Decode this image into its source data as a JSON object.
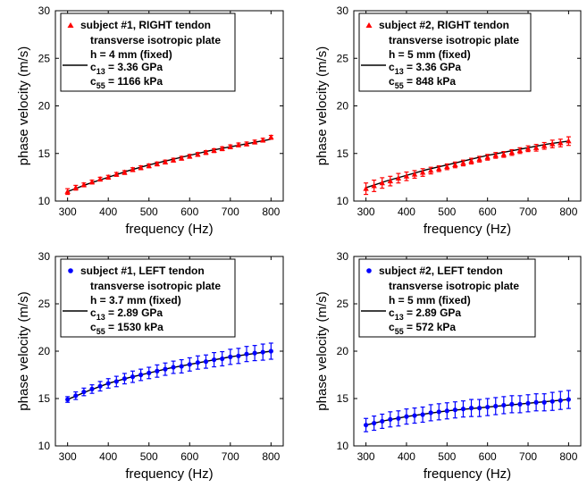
{
  "chart_data": [
    {
      "type": "scatter",
      "panel": "top-left",
      "xlabel": "frequency (Hz)",
      "ylabel": "phase velocity (m/s)",
      "xlim": [
        270,
        830
      ],
      "ylim": [
        10,
        30
      ],
      "xticks": [
        300,
        400,
        500,
        600,
        700,
        800
      ],
      "yticks": [
        10,
        15,
        20,
        25,
        30
      ],
      "grid": false,
      "legend_position": "top-left",
      "marker": "triangle",
      "color": "#ff0000",
      "series": [
        {
          "name": "subject #1, RIGHT tendon",
          "kind": "measured",
          "x": [
            300,
            320,
            340,
            360,
            380,
            400,
            420,
            440,
            460,
            480,
            500,
            520,
            540,
            560,
            580,
            600,
            620,
            640,
            660,
            680,
            700,
            720,
            740,
            760,
            780,
            800
          ],
          "y": [
            11.0,
            11.4,
            11.7,
            12.0,
            12.3,
            12.5,
            12.8,
            13.0,
            13.3,
            13.5,
            13.7,
            13.9,
            14.1,
            14.3,
            14.5,
            14.7,
            14.9,
            15.1,
            15.3,
            15.5,
            15.7,
            15.9,
            16.0,
            16.2,
            16.4,
            16.7
          ],
          "err": [
            0.3,
            0.25,
            0.2,
            0.2,
            0.2,
            0.2,
            0.2,
            0.2,
            0.2,
            0.2,
            0.2,
            0.2,
            0.2,
            0.2,
            0.2,
            0.2,
            0.2,
            0.2,
            0.2,
            0.2,
            0.2,
            0.2,
            0.2,
            0.2,
            0.2,
            0.2
          ]
        },
        {
          "name": "transverse isotropic plate",
          "kind": "model",
          "x": [
            300,
            350,
            400,
            450,
            500,
            550,
            600,
            650,
            700,
            750,
            800
          ],
          "y": [
            11.0,
            11.8,
            12.5,
            13.2,
            13.8,
            14.3,
            14.8,
            15.3,
            15.7,
            16.1,
            16.5
          ]
        }
      ],
      "legend": {
        "measured": "subject #1, RIGHT tendon",
        "model": "transverse isotropic plate",
        "param_h": "h = 4 mm (fixed)",
        "param_c13_base": "c",
        "param_c13_sub": "13",
        "param_c13_value": " = 3.36 GPa",
        "param_c55_base": "c",
        "param_c55_sub": "55",
        "param_c55_value": " = 1166 kPa"
      }
    },
    {
      "type": "scatter",
      "panel": "top-right",
      "xlabel": "frequency (Hz)",
      "ylabel": "phase velocity (m/s)",
      "xlim": [
        270,
        830
      ],
      "ylim": [
        10,
        30
      ],
      "xticks": [
        300,
        400,
        500,
        600,
        700,
        800
      ],
      "yticks": [
        10,
        15,
        20,
        25,
        30
      ],
      "grid": false,
      "legend_position": "top-left",
      "marker": "triangle",
      "color": "#ff0000",
      "series": [
        {
          "name": "subject #2, RIGHT tendon",
          "kind": "measured",
          "x": [
            300,
            320,
            340,
            360,
            380,
            400,
            420,
            440,
            460,
            480,
            500,
            520,
            540,
            560,
            580,
            600,
            620,
            640,
            660,
            680,
            700,
            720,
            740,
            760,
            780,
            800
          ],
          "y": [
            11.3,
            11.6,
            11.9,
            12.1,
            12.4,
            12.6,
            12.8,
            13.0,
            13.2,
            13.4,
            13.6,
            13.8,
            14.0,
            14.2,
            14.4,
            14.6,
            14.8,
            14.9,
            15.1,
            15.3,
            15.5,
            15.6,
            15.8,
            16.0,
            16.1,
            16.3
          ],
          "err": [
            0.6,
            0.6,
            0.55,
            0.5,
            0.5,
            0.45,
            0.4,
            0.4,
            0.35,
            0.3,
            0.3,
            0.3,
            0.3,
            0.3,
            0.3,
            0.3,
            0.3,
            0.3,
            0.3,
            0.3,
            0.3,
            0.35,
            0.35,
            0.4,
            0.4,
            0.45
          ]
        },
        {
          "name": "transverse isotropic plate",
          "kind": "model",
          "x": [
            300,
            350,
            400,
            450,
            500,
            550,
            600,
            650,
            700,
            750,
            800
          ],
          "y": [
            11.4,
            12.1,
            12.7,
            13.3,
            13.8,
            14.3,
            14.8,
            15.2,
            15.6,
            16.0,
            16.3
          ]
        }
      ],
      "legend": {
        "measured": "subject #2, RIGHT tendon",
        "model": "transverse isotropic plate",
        "param_h": "h = 5 mm (fixed)",
        "param_c13_base": "c",
        "param_c13_sub": "13",
        "param_c13_value": " = 3.36 GPa",
        "param_c55_base": "c",
        "param_c55_sub": "55",
        "param_c55_value": " = 848 kPa"
      }
    },
    {
      "type": "scatter",
      "panel": "bottom-left",
      "xlabel": "frequency (Hz)",
      "ylabel": "phase velocity (m/s)",
      "xlim": [
        270,
        830
      ],
      "ylim": [
        10,
        30
      ],
      "xticks": [
        300,
        400,
        500,
        600,
        700,
        800
      ],
      "yticks": [
        10,
        15,
        20,
        25,
        30
      ],
      "grid": false,
      "legend_position": "top-left",
      "marker": "circle",
      "color": "#0000ff",
      "series": [
        {
          "name": "subject #1, LEFT tendon",
          "kind": "measured",
          "x": [
            300,
            320,
            340,
            360,
            380,
            400,
            420,
            440,
            460,
            480,
            500,
            520,
            540,
            560,
            580,
            600,
            620,
            640,
            660,
            680,
            700,
            720,
            740,
            760,
            780,
            800
          ],
          "y": [
            14.9,
            15.3,
            15.7,
            16.0,
            16.3,
            16.6,
            16.8,
            17.1,
            17.3,
            17.5,
            17.7,
            17.9,
            18.1,
            18.3,
            18.4,
            18.6,
            18.8,
            18.9,
            19.1,
            19.2,
            19.4,
            19.5,
            19.7,
            19.8,
            19.9,
            20.0
          ],
          "err": [
            0.3,
            0.4,
            0.4,
            0.45,
            0.5,
            0.5,
            0.55,
            0.55,
            0.6,
            0.6,
            0.6,
            0.65,
            0.65,
            0.65,
            0.7,
            0.7,
            0.7,
            0.7,
            0.75,
            0.75,
            0.8,
            0.8,
            0.8,
            0.8,
            0.85,
            0.85
          ]
        },
        {
          "name": "transverse isotropic plate",
          "kind": "model",
          "x": [
            300,
            350,
            400,
            450,
            500,
            550,
            600,
            650,
            700,
            750,
            800
          ],
          "y": [
            14.9,
            15.8,
            16.6,
            17.2,
            17.7,
            18.2,
            18.6,
            19.0,
            19.4,
            19.7,
            20.0
          ]
        }
      ],
      "legend": {
        "measured": "subject #1, LEFT tendon",
        "model": "transverse isotropic plate",
        "param_h": "h = 3.7 mm (fixed)",
        "param_c13_base": "c",
        "param_c13_sub": "13",
        "param_c13_value": " = 2.89 GPa",
        "param_c55_base": "c",
        "param_c55_sub": "55",
        "param_c55_value": " = 1530 kPa"
      }
    },
    {
      "type": "scatter",
      "panel": "bottom-right",
      "xlabel": "frequency (Hz)",
      "ylabel": "phase velocity (m/s)",
      "xlim": [
        270,
        830
      ],
      "ylim": [
        10,
        30
      ],
      "xticks": [
        300,
        400,
        500,
        600,
        700,
        800
      ],
      "yticks": [
        10,
        15,
        20,
        25,
        30
      ],
      "grid": false,
      "legend_position": "top-left",
      "marker": "circle",
      "color": "#0000ff",
      "series": [
        {
          "name": "subject #2, LEFT tendon",
          "kind": "measured",
          "x": [
            300,
            320,
            340,
            360,
            380,
            400,
            420,
            440,
            460,
            480,
            500,
            520,
            540,
            560,
            580,
            600,
            620,
            640,
            660,
            680,
            700,
            720,
            740,
            760,
            780,
            800
          ],
          "y": [
            12.2,
            12.4,
            12.6,
            12.8,
            12.9,
            13.1,
            13.2,
            13.3,
            13.5,
            13.6,
            13.7,
            13.8,
            13.9,
            14.0,
            14.0,
            14.1,
            14.2,
            14.3,
            14.4,
            14.4,
            14.5,
            14.6,
            14.6,
            14.7,
            14.8,
            14.9
          ],
          "err": [
            0.7,
            0.75,
            0.75,
            0.8,
            0.8,
            0.8,
            0.8,
            0.8,
            0.85,
            0.85,
            0.85,
            0.85,
            0.85,
            0.9,
            0.9,
            0.9,
            0.9,
            0.9,
            0.9,
            0.9,
            0.9,
            0.9,
            0.9,
            0.95,
            0.95,
            0.95
          ]
        },
        {
          "name": "transverse isotropic plate",
          "kind": "model",
          "x": [
            300,
            350,
            400,
            450,
            500,
            550,
            600,
            650,
            700,
            750,
            800
          ],
          "y": [
            12.2,
            12.7,
            13.1,
            13.4,
            13.7,
            13.9,
            14.1,
            14.3,
            14.5,
            14.7,
            14.9
          ]
        }
      ],
      "legend": {
        "measured": "subject #2, LEFT tendon",
        "model": "transverse isotropic plate",
        "param_h": "h = 5 mm (fixed)",
        "param_c13_base": "c",
        "param_c13_sub": "13",
        "param_c13_value": " = 2.89 GPa",
        "param_c55_base": "c",
        "param_c55_sub": "55",
        "param_c55_value": " = 572 kPa"
      }
    }
  ]
}
